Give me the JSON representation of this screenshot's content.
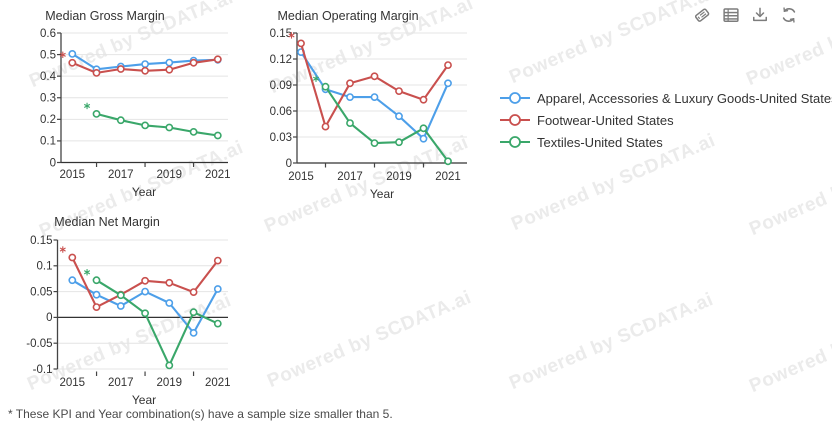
{
  "watermark": "Powered by SCDATA.ai",
  "toolbar": {
    "icons": [
      {
        "name": "tag-icon"
      },
      {
        "name": "table-icon"
      },
      {
        "name": "download-icon"
      },
      {
        "name": "refresh-icon"
      }
    ],
    "icon_color": "#7c7c7c"
  },
  "legend": {
    "items": [
      {
        "label": "Apparel, Accessories & Luxury Goods-United States",
        "color": "#4d9fe9"
      },
      {
        "label": "Footwear-United States",
        "color": "#c9504e"
      },
      {
        "label": "Textiles-United States",
        "color": "#3aa76a"
      }
    ]
  },
  "footnote": "* These KPI and Year combination(s) have a sample size smaller than 5.",
  "colors": {
    "apparel": "#4d9fe9",
    "footwear": "#c9504e",
    "textiles": "#3aa76a",
    "axis": "#444444",
    "zero_line": "#333333",
    "gridline": "#e4e4e4",
    "text": "#333333"
  },
  "chart_data": [
    {
      "type": "line",
      "title": "Median Gross Margin",
      "xlabel": "Year",
      "ylim": [
        0,
        0.6
      ],
      "yticks": [
        0,
        0.1,
        0.2,
        0.3,
        0.4,
        0.5,
        0.6
      ],
      "ytick_labels": [
        "0",
        "0.1",
        "0.2",
        "0.3",
        "0.4",
        "0.5",
        "0.6"
      ],
      "xlim": [
        2014.55,
        2021.45
      ],
      "x_tick_labels": [
        "2015",
        "2017",
        "2019",
        "2021"
      ],
      "x_tick_years": [
        2015,
        2017,
        2019,
        2021
      ],
      "x_minor_ticks": [
        2016,
        2018,
        2020
      ],
      "grid": true,
      "series": [
        {
          "name": "Apparel, Accessories & Luxury Goods-United States",
          "color": "#4d9fe9",
          "x": [
            2015,
            2016,
            2017,
            2018,
            2019,
            2020,
            2021
          ],
          "values": [
            0.503,
            0.432,
            0.445,
            0.456,
            0.463,
            0.472,
            0.476
          ],
          "starred_x": []
        },
        {
          "name": "Footwear-United States",
          "color": "#c9504e",
          "x": [
            2015,
            2016,
            2017,
            2018,
            2019,
            2020,
            2021
          ],
          "values": [
            0.462,
            0.415,
            0.433,
            0.425,
            0.43,
            0.462,
            0.478
          ],
          "starred_x": [
            2015
          ]
        },
        {
          "name": "Textiles-United States",
          "color": "#3aa76a",
          "x": [
            2016,
            2017,
            2018,
            2019,
            2020,
            2021
          ],
          "values": [
            0.225,
            0.196,
            0.172,
            0.162,
            0.142,
            0.125
          ],
          "starred_x": [
            2016
          ]
        }
      ]
    },
    {
      "type": "line",
      "title": "Median Operating Margin",
      "xlabel": "Year",
      "ylim": [
        0,
        0.15
      ],
      "yticks": [
        0,
        0.03,
        0.06,
        0.09,
        0.12,
        0.15
      ],
      "ytick_labels": [
        "0",
        "0.03",
        "0.06",
        "0.09",
        "0.12",
        "0.15"
      ],
      "xlim": [
        2014.85,
        2021.45
      ],
      "x_tick_labels": [
        "2015",
        "2017",
        "2019",
        "2021"
      ],
      "x_tick_years": [
        2015,
        2017,
        2019,
        2021
      ],
      "x_minor_ticks": [
        2016,
        2018,
        2020
      ],
      "grid": true,
      "series": [
        {
          "name": "Apparel, Accessories & Luxury Goods-United States",
          "color": "#4d9fe9",
          "x": [
            2015,
            2016,
            2017,
            2018,
            2019,
            2020,
            2021
          ],
          "values": [
            0.128,
            0.085,
            0.076,
            0.076,
            0.054,
            0.028,
            0.092
          ],
          "starred_x": []
        },
        {
          "name": "Footwear-United States",
          "color": "#c9504e",
          "x": [
            2015,
            2016,
            2017,
            2018,
            2019,
            2020,
            2021
          ],
          "values": [
            0.138,
            0.042,
            0.092,
            0.1,
            0.083,
            0.073,
            0.113
          ],
          "starred_x": [
            2015
          ]
        },
        {
          "name": "Textiles-United States",
          "color": "#3aa76a",
          "x": [
            2016,
            2017,
            2018,
            2019,
            2020,
            2021
          ],
          "values": [
            0.088,
            0.046,
            0.023,
            0.024,
            0.04,
            0.002
          ],
          "starred_x": [
            2016
          ]
        }
      ]
    },
    {
      "type": "line",
      "title": "Median Net Margin",
      "xlabel": "Year",
      "ylim": [
        -0.1,
        0.15
      ],
      "yticks": [
        -0.1,
        -0.05,
        0,
        0.05,
        0.1,
        0.15
      ],
      "ytick_labels": [
        "-0.1",
        "-0.05",
        "0",
        "0.05",
        "0.1",
        "0.15"
      ],
      "xlim": [
        2014.55,
        2021.45
      ],
      "x_tick_labels": [
        "2015",
        "2017",
        "2019",
        "2021"
      ],
      "x_tick_years": [
        2015,
        2017,
        2019,
        2021
      ],
      "x_minor_ticks": [
        2016,
        2018,
        2020
      ],
      "grid": true,
      "series": [
        {
          "name": "Apparel, Accessories & Luxury Goods-United States",
          "color": "#4d9fe9",
          "x": [
            2015,
            2016,
            2017,
            2018,
            2019,
            2020,
            2021
          ],
          "values": [
            0.072,
            0.044,
            0.022,
            0.05,
            0.028,
            -0.03,
            0.055
          ],
          "starred_x": []
        },
        {
          "name": "Footwear-United States",
          "color": "#c9504e",
          "x": [
            2015,
            2016,
            2017,
            2018,
            2019,
            2020,
            2021
          ],
          "values": [
            0.116,
            0.02,
            0.044,
            0.071,
            0.067,
            0.049,
            0.11
          ],
          "starred_x": [
            2015
          ]
        },
        {
          "name": "Textiles-United States",
          "color": "#3aa76a",
          "x": [
            2016,
            2017,
            2018,
            2019,
            2020,
            2021
          ],
          "values": [
            0.072,
            0.043,
            0.008,
            -0.093,
            0.01,
            -0.012
          ],
          "starred_x": [
            2016
          ]
        }
      ]
    }
  ]
}
